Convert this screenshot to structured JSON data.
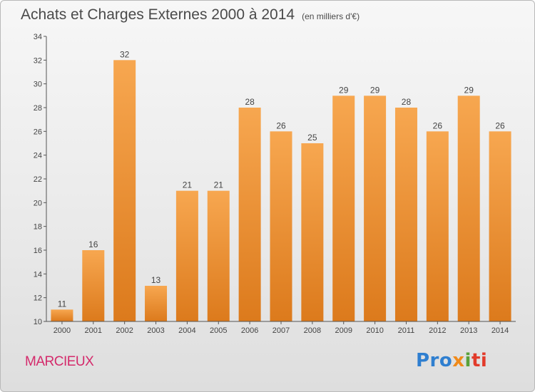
{
  "title": "Achats et Charges Externes 2000 à 2014",
  "subtitle": "(en milliers d'€)",
  "commune": "MARCIEUX",
  "logo": {
    "p1": "Pro",
    "p2": "x",
    "p3": "i",
    "p4": "ti"
  },
  "colors": {
    "bar_light": "#f7a750",
    "bar_dark": "#dc7a1c",
    "axis": "#555555",
    "commune": "#d42a6b"
  },
  "chart_data": {
    "type": "bar",
    "title": "Achats et Charges Externes 2000 à 2014",
    "subtitle": "(en milliers d'€)",
    "categories": [
      "2000",
      "2001",
      "2002",
      "2003",
      "2004",
      "2005",
      "2006",
      "2007",
      "2008",
      "2009",
      "2010",
      "2011",
      "2012",
      "2013",
      "2014"
    ],
    "values": [
      11,
      16,
      32,
      13,
      21,
      21,
      28,
      26,
      25,
      29,
      29,
      28,
      26,
      29,
      26
    ],
    "ylim": [
      10,
      34
    ],
    "yticks": [
      10,
      12,
      14,
      16,
      18,
      20,
      22,
      24,
      26,
      28,
      30,
      32,
      34
    ],
    "grid": false,
    "data_labels": true
  }
}
